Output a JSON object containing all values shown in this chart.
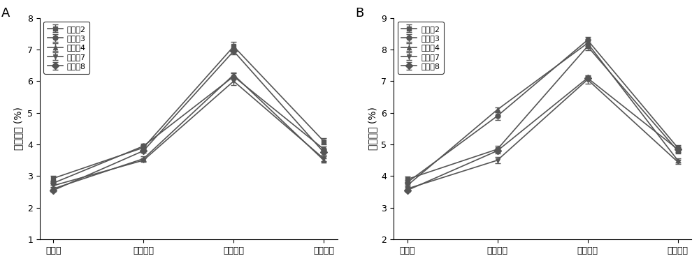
{
  "panel_A": {
    "title": "A",
    "ylabel": "总糖含量 (%)",
    "xlabel_ticks": [
      "初始值",
      "第一阶段",
      "第二阶段",
      "第三阶段"
    ],
    "ylim": [
      1,
      8
    ],
    "yticks": [
      1,
      2,
      3,
      4,
      5,
      6,
      7,
      8
    ],
    "series": [
      {
        "label": "实施例2",
        "marker": "s",
        "values": [
          2.93,
          3.9,
          7.1,
          4.1
        ],
        "yerr": [
          0.08,
          0.07,
          0.15,
          0.1
        ]
      },
      {
        "label": "实施例3",
        "marker": "o",
        "values": [
          2.78,
          3.95,
          6.15,
          3.85
        ],
        "yerr": [
          0.06,
          0.07,
          0.1,
          0.08
        ]
      },
      {
        "label": "实施例4",
        "marker": "^",
        "values": [
          2.6,
          3.55,
          6.2,
          3.5
        ],
        "yerr": [
          0.05,
          0.08,
          0.08,
          0.07
        ]
      },
      {
        "label": "实施例7",
        "marker": "v",
        "values": [
          2.7,
          3.5,
          6.0,
          3.55
        ],
        "yerr": [
          0.06,
          0.05,
          0.12,
          0.08
        ]
      },
      {
        "label": "实施例8",
        "marker": "D",
        "values": [
          2.55,
          3.8,
          6.95,
          3.75
        ],
        "yerr": [
          0.05,
          0.06,
          0.1,
          0.07
        ]
      }
    ]
  },
  "panel_B": {
    "title": "B",
    "ylabel": "总糖含量 (%)",
    "xlabel_ticks": [
      "初始值",
      "第一阶段",
      "第二阶段",
      "第三阶段"
    ],
    "ylim": [
      2,
      9
    ],
    "yticks": [
      2,
      3,
      4,
      5,
      6,
      7,
      8,
      9
    ],
    "series": [
      {
        "label": "实施例2",
        "marker": "s",
        "values": [
          3.9,
          4.85,
          8.1,
          4.8
        ],
        "yerr": [
          0.08,
          0.1,
          0.12,
          0.08
        ]
      },
      {
        "label": "实施例3",
        "marker": "o",
        "values": [
          3.8,
          5.9,
          8.3,
          4.9
        ],
        "yerr": [
          0.07,
          0.12,
          0.1,
          0.08
        ]
      },
      {
        "label": "实施例4",
        "marker": "^",
        "values": [
          3.7,
          6.1,
          8.2,
          4.5
        ],
        "yerr": [
          0.06,
          0.08,
          0.1,
          0.07
        ]
      },
      {
        "label": "实施例7",
        "marker": "v",
        "values": [
          3.6,
          4.5,
          7.05,
          4.45
        ],
        "yerr": [
          0.07,
          0.1,
          0.12,
          0.07
        ]
      },
      {
        "label": "实施例8",
        "marker": "D",
        "values": [
          3.55,
          4.8,
          7.1,
          4.85
        ],
        "yerr": [
          0.05,
          0.08,
          0.08,
          0.08
        ]
      }
    ]
  },
  "line_color": "#555555",
  "marker_fill": "#555555",
  "marker_size": 5,
  "linewidth": 1.2,
  "capsize": 3,
  "elinewidth": 1.0,
  "legend_fontsize": 8,
  "tick_fontsize": 9,
  "label_fontsize": 10
}
